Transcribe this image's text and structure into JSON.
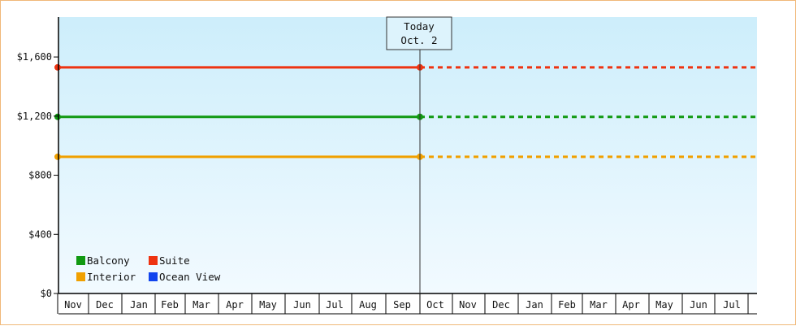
{
  "chart_data": {
    "type": "line",
    "title": "",
    "xlabel": "",
    "ylabel": "",
    "ylim": [
      0,
      1870
    ],
    "yticks": [
      {
        "value": 0,
        "label": "$0"
      },
      {
        "value": 400,
        "label": "$400"
      },
      {
        "value": 800,
        "label": "$800"
      },
      {
        "value": 1200,
        "label": "$1,200"
      },
      {
        "value": 1600,
        "label": "$1,600"
      }
    ],
    "months": [
      "Nov",
      "Dec",
      "Jan",
      "Feb",
      "Mar",
      "Apr",
      "May",
      "Jun",
      "Jul",
      "Aug",
      "Sep",
      "Oct",
      "Nov",
      "Dec",
      "Jan",
      "Feb",
      "Mar",
      "Apr",
      "May",
      "Jun",
      "Jul"
    ],
    "today": {
      "line1": "Today",
      "line2": "Oct. 2",
      "month_index": 11
    },
    "series": [
      {
        "name": "Suite",
        "color": "#ee3311",
        "value": 1530
      },
      {
        "name": "Balcony",
        "color": "#119911",
        "value": 1195
      },
      {
        "name": "Interior",
        "color": "#f0a000",
        "value": 925
      },
      {
        "name": "Ocean View",
        "color": "#1144ee",
        "value": null
      }
    ],
    "legend": {
      "placement": "bottom-left",
      "items": [
        {
          "name": "Balcony",
          "color": "#119911"
        },
        {
          "name": "Suite",
          "color": "#ee3311"
        },
        {
          "name": "Interior",
          "color": "#f0a000"
        },
        {
          "name": "Ocean View",
          "color": "#1144ee"
        }
      ]
    },
    "grid": false,
    "background_gradient": [
      "#cdeefb",
      "#f2faff"
    ]
  }
}
